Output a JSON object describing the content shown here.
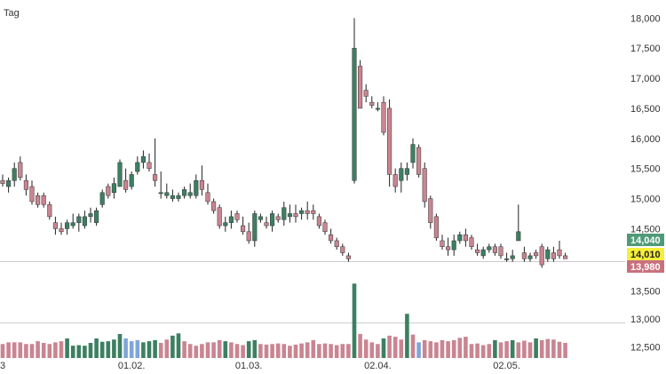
{
  "period_label": "Tag",
  "colors": {
    "up": "#3d7f63",
    "down": "#c98591",
    "neutral_volume": "#7fa5d9",
    "wick": "#222222",
    "separator": "#cccccc",
    "tag_high_bg": "#4f9a78",
    "tag_mid_bg": "#f5ef3c",
    "tag_low_bg": "#c9707e"
  },
  "price_tags": [
    {
      "label": "14,040",
      "role": "high"
    },
    {
      "label": "14,010",
      "role": "mid"
    },
    {
      "label": "13,980",
      "role": "low"
    }
  ],
  "chart_data": {
    "type": "candlestick",
    "title": "",
    "xlabel": "",
    "ylabel": "",
    "price_axis": {
      "ylim": [
        13.96,
        18.3
      ],
      "ticks": [
        {
          "value": 18.0,
          "label": "18,000"
        },
        {
          "value": 17.5,
          "label": "17,500"
        },
        {
          "value": 17.0,
          "label": "17,000"
        },
        {
          "value": 16.5,
          "label": "16,500"
        },
        {
          "value": 16.0,
          "label": "16,000"
        },
        {
          "value": 15.5,
          "label": "15,500"
        },
        {
          "value": 15.0,
          "label": "15,000"
        },
        {
          "value": 14.5,
          "label": "14,500"
        }
      ]
    },
    "volume_axis": {
      "ylim": [
        12.3,
        13.65
      ],
      "ticks": [
        {
          "value": 13.5,
          "label": "13,500"
        },
        {
          "value": 13.0,
          "label": "13,000"
        },
        {
          "value": 12.5,
          "label": "12,500"
        }
      ]
    },
    "x_ticks": [
      {
        "index": 0,
        "label": "3"
      },
      {
        "index": 22,
        "label": "01.02."
      },
      {
        "index": 42,
        "label": "01.03."
      },
      {
        "index": 64,
        "label": "02.04."
      },
      {
        "index": 86,
        "label": "02.05."
      }
    ],
    "candles": [
      [
        15.3,
        15.4,
        15.2,
        15.25
      ],
      [
        15.2,
        15.35,
        15.1,
        15.3
      ],
      [
        15.3,
        15.6,
        15.2,
        15.5
      ],
      [
        15.6,
        15.7,
        15.3,
        15.35
      ],
      [
        15.3,
        15.4,
        15.05,
        15.15
      ],
      [
        15.2,
        15.3,
        14.9,
        14.95
      ],
      [
        15.05,
        15.1,
        14.85,
        14.9
      ],
      [
        15.05,
        15.1,
        14.85,
        14.9
      ],
      [
        14.9,
        14.95,
        14.65,
        14.7
      ],
      [
        14.6,
        14.7,
        14.4,
        14.5
      ],
      [
        14.5,
        14.6,
        14.4,
        14.45
      ],
      [
        14.5,
        14.65,
        14.4,
        14.6
      ],
      [
        14.55,
        14.75,
        14.5,
        14.6
      ],
      [
        14.6,
        14.75,
        14.45,
        14.7
      ],
      [
        14.55,
        14.8,
        14.5,
        14.7
      ],
      [
        14.7,
        14.85,
        14.6,
        14.75
      ],
      [
        14.6,
        14.85,
        14.55,
        14.8
      ],
      [
        14.9,
        15.15,
        14.85,
        15.1
      ],
      [
        15.2,
        15.25,
        15.0,
        15.05
      ],
      [
        15.1,
        15.35,
        15.0,
        15.25
      ],
      [
        15.2,
        15.65,
        15.2,
        15.6
      ],
      [
        15.3,
        15.5,
        15.1,
        15.15
      ],
      [
        15.2,
        15.45,
        15.15,
        15.4
      ],
      [
        15.45,
        15.7,
        15.4,
        15.6
      ],
      [
        15.6,
        15.8,
        15.5,
        15.7
      ],
      [
        15.6,
        15.75,
        15.45,
        15.5
      ],
      [
        15.4,
        16.0,
        15.2,
        15.3
      ],
      [
        15.1,
        15.45,
        15.0,
        15.1
      ],
      [
        15.05,
        15.25,
        15.0,
        15.1
      ],
      [
        15.0,
        15.15,
        14.95,
        15.05
      ],
      [
        15.0,
        15.1,
        14.95,
        15.05
      ],
      [
        15.05,
        15.2,
        15.0,
        15.15
      ],
      [
        15.05,
        15.25,
        15.0,
        15.1
      ],
      [
        15.05,
        15.4,
        15.0,
        15.3
      ],
      [
        15.3,
        15.55,
        15.05,
        15.15
      ],
      [
        15.1,
        15.25,
        14.9,
        14.95
      ],
      [
        14.95,
        15.0,
        14.75,
        14.8
      ],
      [
        14.85,
        14.9,
        14.5,
        14.55
      ],
      [
        14.55,
        14.7,
        14.45,
        14.6
      ],
      [
        14.6,
        14.8,
        14.5,
        14.7
      ],
      [
        14.75,
        14.8,
        14.6,
        14.65
      ],
      [
        14.55,
        14.7,
        14.4,
        14.45
      ],
      [
        14.45,
        14.6,
        14.25,
        14.3
      ],
      [
        14.3,
        14.8,
        14.2,
        14.75
      ],
      [
        14.65,
        14.75,
        14.6,
        14.7
      ],
      [
        14.6,
        14.7,
        14.5,
        14.55
      ],
      [
        14.55,
        14.8,
        14.45,
        14.75
      ],
      [
        14.7,
        14.75,
        14.6,
        14.65
      ],
      [
        14.65,
        14.95,
        14.55,
        14.85
      ],
      [
        14.7,
        14.9,
        14.6,
        14.75
      ],
      [
        14.75,
        14.9,
        14.6,
        14.7
      ],
      [
        14.75,
        14.85,
        14.65,
        14.8
      ],
      [
        14.8,
        14.95,
        14.65,
        14.75
      ],
      [
        14.8,
        14.9,
        14.65,
        14.75
      ],
      [
        14.7,
        14.75,
        14.5,
        14.55
      ],
      [
        14.6,
        14.65,
        14.4,
        14.45
      ],
      [
        14.4,
        14.5,
        14.25,
        14.3
      ],
      [
        14.3,
        14.35,
        14.15,
        14.2
      ],
      [
        14.2,
        14.25,
        14.05,
        14.1
      ],
      [
        14.05,
        14.1,
        13.95,
        14.0
      ],
      [
        15.3,
        18.0,
        15.25,
        17.5
      ],
      [
        17.2,
        17.3,
        16.5,
        16.5
      ],
      [
        16.8,
        16.9,
        16.6,
        16.7
      ],
      [
        16.6,
        16.7,
        16.5,
        16.55
      ],
      [
        16.5,
        16.6,
        16.45,
        16.5
      ],
      [
        16.6,
        16.7,
        16.05,
        16.1
      ],
      [
        16.5,
        16.65,
        15.2,
        15.4
      ],
      [
        15.4,
        15.5,
        15.1,
        15.2
      ],
      [
        15.3,
        15.6,
        15.1,
        15.5
      ],
      [
        15.4,
        15.6,
        15.3,
        15.5
      ],
      [
        15.6,
        16.0,
        15.5,
        15.9
      ],
      [
        15.85,
        15.9,
        15.35,
        15.4
      ],
      [
        15.5,
        15.6,
        14.85,
        14.95
      ],
      [
        15.0,
        15.05,
        14.5,
        14.6
      ],
      [
        14.7,
        14.75,
        14.3,
        14.35
      ],
      [
        14.3,
        14.4,
        14.15,
        14.2
      ],
      [
        14.2,
        14.35,
        14.05,
        14.15
      ],
      [
        14.15,
        14.4,
        14.05,
        14.3
      ],
      [
        14.3,
        14.45,
        14.25,
        14.4
      ],
      [
        14.4,
        14.5,
        14.2,
        14.3
      ],
      [
        14.35,
        14.4,
        14.15,
        14.2
      ],
      [
        14.15,
        14.25,
        14.05,
        14.1
      ],
      [
        14.05,
        14.2,
        14.0,
        14.15
      ],
      [
        14.15,
        14.25,
        14.1,
        14.2
      ],
      [
        14.2,
        14.25,
        14.05,
        14.1
      ],
      [
        14.2,
        14.25,
        14.0,
        14.05
      ],
      [
        14.0,
        14.1,
        13.95,
        14.0
      ],
      [
        14.0,
        14.15,
        13.95,
        14.05
      ],
      [
        14.3,
        14.9,
        14.3,
        14.45
      ],
      [
        14.1,
        14.2,
        13.95,
        14.0
      ],
      [
        14.0,
        14.1,
        13.95,
        14.05
      ],
      [
        14.1,
        14.15,
        14.0,
        14.05
      ],
      [
        14.2,
        14.25,
        13.85,
        13.9
      ],
      [
        14.0,
        14.2,
        13.95,
        14.15
      ],
      [
        14.1,
        14.2,
        13.95,
        14.0
      ],
      [
        14.15,
        14.3,
        14.0,
        14.05
      ],
      [
        14.05,
        14.1,
        14.0,
        14.0
      ]
    ],
    "volumes": [
      {
        "v": 12.55,
        "c": "down"
      },
      {
        "v": 12.58,
        "c": "down"
      },
      {
        "v": 12.58,
        "c": "down"
      },
      {
        "v": 12.58,
        "c": "down"
      },
      {
        "v": 12.55,
        "c": "down"
      },
      {
        "v": 12.55,
        "c": "down"
      },
      {
        "v": 12.6,
        "c": "down"
      },
      {
        "v": 12.57,
        "c": "down"
      },
      {
        "v": 12.55,
        "c": "down"
      },
      {
        "v": 12.58,
        "c": "down"
      },
      {
        "v": 12.6,
        "c": "down"
      },
      {
        "v": 12.65,
        "c": "up"
      },
      {
        "v": 12.52,
        "c": "up"
      },
      {
        "v": 12.53,
        "c": "up"
      },
      {
        "v": 12.52,
        "c": "up"
      },
      {
        "v": 12.57,
        "c": "up"
      },
      {
        "v": 12.65,
        "c": "up"
      },
      {
        "v": 12.59,
        "c": "up"
      },
      {
        "v": 12.6,
        "c": "up"
      },
      {
        "v": 12.63,
        "c": "up"
      },
      {
        "v": 12.73,
        "c": "up"
      },
      {
        "v": 12.65,
        "c": "neutral"
      },
      {
        "v": 12.6,
        "c": "neutral"
      },
      {
        "v": 12.62,
        "c": "neutral"
      },
      {
        "v": 12.58,
        "c": "up"
      },
      {
        "v": 12.6,
        "c": "up"
      },
      {
        "v": 12.62,
        "c": "up"
      },
      {
        "v": 12.57,
        "c": "down"
      },
      {
        "v": 12.63,
        "c": "down"
      },
      {
        "v": 12.7,
        "c": "up"
      },
      {
        "v": 12.74,
        "c": "up"
      },
      {
        "v": 12.6,
        "c": "down"
      },
      {
        "v": 12.55,
        "c": "down"
      },
      {
        "v": 12.52,
        "c": "down"
      },
      {
        "v": 12.55,
        "c": "down"
      },
      {
        "v": 12.58,
        "c": "down"
      },
      {
        "v": 12.58,
        "c": "down"
      },
      {
        "v": 12.62,
        "c": "down"
      },
      {
        "v": 12.6,
        "c": "up"
      },
      {
        "v": 12.58,
        "c": "down"
      },
      {
        "v": 12.55,
        "c": "down"
      },
      {
        "v": 12.53,
        "c": "down"
      },
      {
        "v": 12.6,
        "c": "up"
      },
      {
        "v": 12.62,
        "c": "up"
      },
      {
        "v": 12.55,
        "c": "down"
      },
      {
        "v": 12.54,
        "c": "down"
      },
      {
        "v": 12.55,
        "c": "down"
      },
      {
        "v": 12.56,
        "c": "down"
      },
      {
        "v": 12.55,
        "c": "down"
      },
      {
        "v": 12.52,
        "c": "down"
      },
      {
        "v": 12.54,
        "c": "down"
      },
      {
        "v": 12.56,
        "c": "down"
      },
      {
        "v": 12.58,
        "c": "down"
      },
      {
        "v": 12.62,
        "c": "down"
      },
      {
        "v": 12.55,
        "c": "down"
      },
      {
        "v": 12.56,
        "c": "down"
      },
      {
        "v": 12.55,
        "c": "down"
      },
      {
        "v": 12.53,
        "c": "down"
      },
      {
        "v": 12.55,
        "c": "down"
      },
      {
        "v": 12.55,
        "c": "down"
      },
      {
        "v": 13.63,
        "c": "up"
      },
      {
        "v": 12.73,
        "c": "down"
      },
      {
        "v": 12.63,
        "c": "down"
      },
      {
        "v": 12.58,
        "c": "down"
      },
      {
        "v": 12.55,
        "c": "down"
      },
      {
        "v": 12.65,
        "c": "up"
      },
      {
        "v": 12.7,
        "c": "down"
      },
      {
        "v": 12.68,
        "c": "down"
      },
      {
        "v": 12.63,
        "c": "down"
      },
      {
        "v": 13.09,
        "c": "up"
      },
      {
        "v": 12.72,
        "c": "down"
      },
      {
        "v": 12.58,
        "c": "neutral"
      },
      {
        "v": 12.62,
        "c": "down"
      },
      {
        "v": 12.6,
        "c": "down"
      },
      {
        "v": 12.58,
        "c": "down"
      },
      {
        "v": 12.62,
        "c": "down"
      },
      {
        "v": 12.6,
        "c": "down"
      },
      {
        "v": 12.62,
        "c": "down"
      },
      {
        "v": 12.66,
        "c": "down"
      },
      {
        "v": 12.68,
        "c": "down"
      },
      {
        "v": 12.55,
        "c": "down"
      },
      {
        "v": 12.56,
        "c": "down"
      },
      {
        "v": 12.53,
        "c": "down"
      },
      {
        "v": 12.55,
        "c": "down"
      },
      {
        "v": 12.62,
        "c": "up"
      },
      {
        "v": 12.58,
        "c": "down"
      },
      {
        "v": 12.6,
        "c": "down"
      },
      {
        "v": 12.62,
        "c": "up"
      },
      {
        "v": 12.58,
        "c": "down"
      },
      {
        "v": 12.61,
        "c": "down"
      },
      {
        "v": 12.58,
        "c": "down"
      },
      {
        "v": 12.65,
        "c": "up"
      },
      {
        "v": 12.62,
        "c": "down"
      },
      {
        "v": 12.64,
        "c": "down"
      },
      {
        "v": 12.63,
        "c": "down"
      },
      {
        "v": 12.59,
        "c": "down"
      },
      {
        "v": 12.57,
        "c": "down"
      }
    ]
  }
}
